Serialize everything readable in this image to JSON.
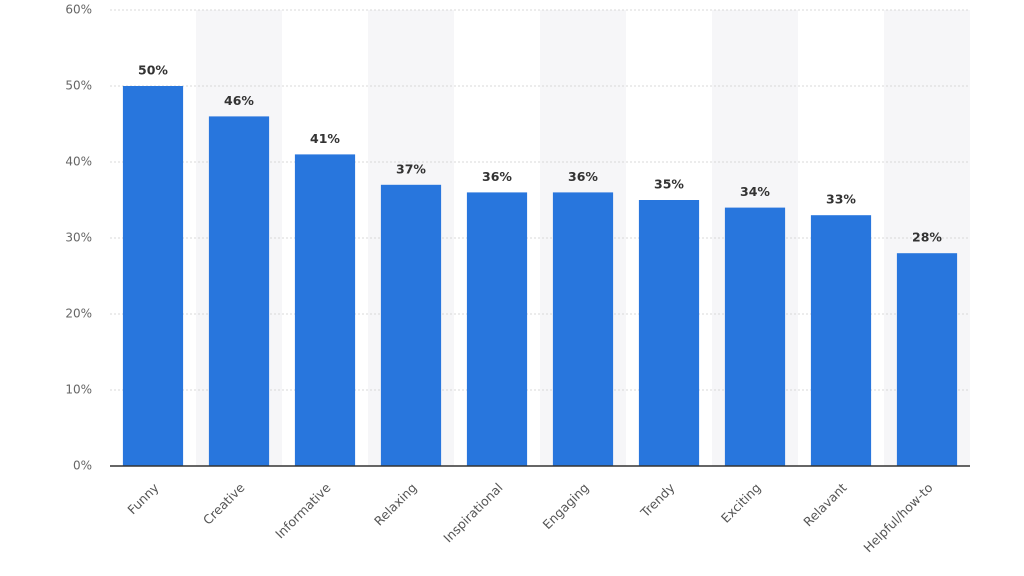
{
  "chart_data": {
    "type": "bar",
    "categories": [
      "Funny",
      "Creative",
      "Informative",
      "Relaxing",
      "Inspirational",
      "Engaging",
      "Trendy",
      "Exciting",
      "Relavant",
      "Helpful/how-to"
    ],
    "values": [
      50,
      46,
      41,
      37,
      36,
      36,
      35,
      34,
      33,
      28
    ],
    "value_labels": [
      "50%",
      "46%",
      "41%",
      "37%",
      "36%",
      "36%",
      "35%",
      "34%",
      "33%",
      "28%"
    ],
    "color": "#2876dd",
    "ylim": [
      0,
      60
    ],
    "yticks": [
      {
        "value": 0,
        "label": "0%"
      },
      {
        "value": 10,
        "label": "10%"
      },
      {
        "value": 20,
        "label": "20%"
      },
      {
        "value": 30,
        "label": "30%"
      },
      {
        "value": 40,
        "label": "40%"
      },
      {
        "value": 50,
        "label": "50%"
      },
      {
        "value": 60,
        "label": "60%"
      }
    ],
    "grid": true
  }
}
